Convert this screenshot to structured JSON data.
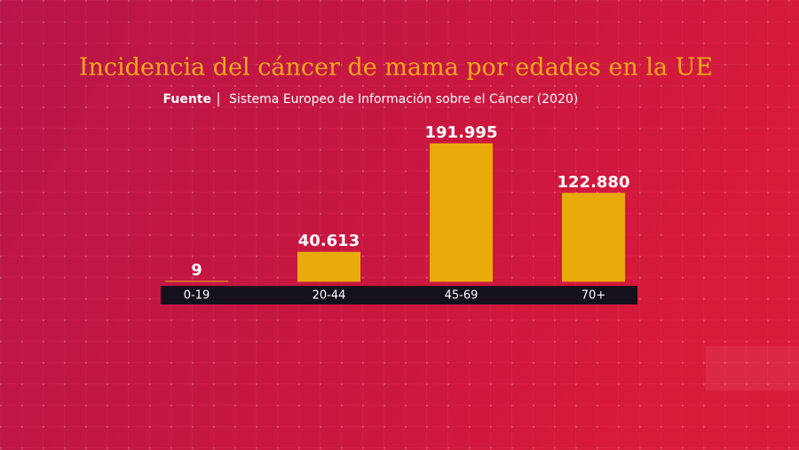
{
  "chart_data": {
    "type": "bar",
    "title": "Incidencia del cáncer de mama por edades en la UE",
    "source_label": "Fuente",
    "source": "Sistema Europeo de Información sobre el Cáncer (2020)",
    "categories": [
      "0-19",
      "20-44",
      "45-69",
      "70+"
    ],
    "values": [
      9,
      40613,
      191995,
      122880
    ],
    "value_labels": [
      "9",
      "40.613",
      "191.995",
      "122.880"
    ],
    "color": "#e9ab0c"
  }
}
